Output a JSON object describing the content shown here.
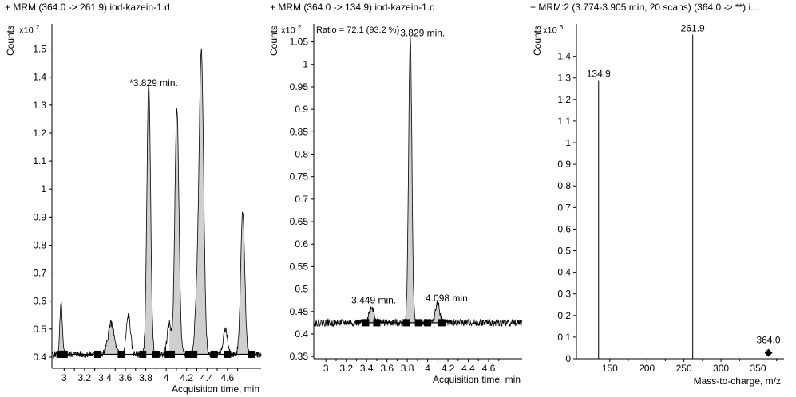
{
  "chart_data": [
    {
      "type": "line",
      "title": "+ MRM (364.0 -> 261.9) iod-kazein-1.d",
      "ylabel": "Counts",
      "scale_label": "x10",
      "scale_exp": "2",
      "xlabel": "Acquisition time, min",
      "xlim": [
        2.88,
        4.93
      ],
      "ylim": [
        0.36,
        1.59
      ],
      "x_ticks": [
        3,
        3.2,
        3.4,
        3.6,
        3.8,
        4,
        4.2,
        4.4,
        4.6
      ],
      "x_tick_labels": [
        "3",
        "3.2",
        "3.4",
        "3.6",
        "3.8",
        "4",
        "4.2",
        "4.4",
        "4.6"
      ],
      "y_ticks": [
        0.4,
        0.5,
        0.6,
        0.7,
        0.8,
        0.9,
        1,
        1.1,
        1.2,
        1.3,
        1.4,
        1.5
      ],
      "y_tick_labels": [
        "0.4",
        "0.5",
        "0.6",
        "0.7",
        "0.8",
        "0.9",
        "1",
        "1.1",
        "1.2",
        "1.3",
        "1.4",
        "1.5"
      ],
      "baseline": 0.41,
      "noise_amplitude": 0.012,
      "peaks": [
        {
          "x": 2.97,
          "h": 0.59,
          "w": 0.012,
          "fill": true,
          "start": 2.93,
          "end": 3.01
        },
        {
          "x": 3.46,
          "h": 0.52,
          "w": 0.03,
          "fill": true,
          "start": 3.32,
          "end": 3.55
        },
        {
          "x": 3.63,
          "h": 0.55,
          "w": 0.02,
          "fill": false
        },
        {
          "x": 3.829,
          "h": 1.38,
          "w": 0.018,
          "fill": true,
          "start": 3.77,
          "end": 3.9
        },
        {
          "x": 4.03,
          "h": 0.52,
          "w": 0.02,
          "fill": false
        },
        {
          "x": 4.105,
          "h": 1.29,
          "w": 0.02,
          "fill": true,
          "start": 4.03,
          "end": 4.22
        },
        {
          "x": 4.3,
          "h": 0.58,
          "w": 0.02,
          "fill": false
        },
        {
          "x": 4.345,
          "h": 1.48,
          "w": 0.022,
          "fill": true,
          "start": 4.24,
          "end": 4.47
        },
        {
          "x": 4.58,
          "h": 0.5,
          "w": 0.02,
          "fill": false
        },
        {
          "x": 4.75,
          "h": 0.92,
          "w": 0.02,
          "fill": true,
          "start": 4.68,
          "end": 4.84
        }
      ],
      "markers": [
        2.96,
        3.0,
        3.33,
        3.56,
        3.77,
        3.9,
        4.02,
        4.05,
        4.22,
        4.27,
        4.47,
        4.6,
        4.84
      ],
      "annotations": [
        {
          "text": "*3.829 min.",
          "x": 3.64,
          "y": 1.38
        }
      ]
    },
    {
      "type": "line",
      "title": "+ MRM (364.0 -> 134.9) iod-kazein-1.d",
      "ylabel": "Counts",
      "scale_label": "x10",
      "scale_exp": "2",
      "ratio_text": "Ratio = 72.1 (93.2 %)",
      "xlabel": "Acquisition time, min",
      "xlim": [
        2.88,
        4.93
      ],
      "ylim": [
        0.345,
        1.09
      ],
      "x_ticks": [
        3,
        3.2,
        3.4,
        3.6,
        3.8,
        4,
        4.2,
        4.4,
        4.6
      ],
      "x_tick_labels": [
        "3",
        "3.2",
        "3.4",
        "3.6",
        "3.8",
        "4",
        "4.2",
        "4.4",
        "4.6"
      ],
      "y_ticks": [
        0.35,
        0.4,
        0.45,
        0.5,
        0.55,
        0.6,
        0.65,
        0.7,
        0.75,
        0.8,
        0.85,
        0.9,
        0.95,
        1,
        1.05
      ],
      "y_tick_labels": [
        "0.35",
        "0.4",
        "0.45",
        "0.5",
        "0.55",
        "0.6",
        "0.65",
        "0.7",
        "0.75",
        "0.8",
        "0.85",
        "0.9",
        "0.95",
        "1",
        "1.05"
      ],
      "baseline": 0.425,
      "noise_amplitude": 0.008,
      "peaks": [
        {
          "x": 3.449,
          "h": 0.46,
          "w": 0.025,
          "fill": true,
          "start": 3.37,
          "end": 3.52
        },
        {
          "x": 3.829,
          "h": 1.06,
          "w": 0.016,
          "fill": true,
          "start": 3.78,
          "end": 3.91
        },
        {
          "x": 4.098,
          "h": 0.47,
          "w": 0.02,
          "fill": true,
          "start": 4.0,
          "end": 4.14
        }
      ],
      "markers": [
        3.39,
        3.5,
        3.79,
        3.91,
        4.0,
        4.14
      ],
      "annotations": [
        {
          "text": "3.449 min.",
          "x": 3.25,
          "y": 0.475
        },
        {
          "text": "3.829 min.",
          "x": 3.73,
          "y": 1.07
        },
        {
          "text": "4.098 min.",
          "x": 3.98,
          "y": 0.48
        }
      ]
    },
    {
      "type": "bar",
      "title": "+ MRM:2 (3.774-3.905 min, 20 scans) (364.0 -> **) i...",
      "ylabel": "Counts",
      "scale_label": "x10",
      "scale_exp": "3",
      "xlabel": "Mass-to-charge, m/z",
      "xlim": [
        105,
        385
      ],
      "ylim": [
        0,
        1.55
      ],
      "x_ticks": [
        150,
        200,
        250,
        300,
        350
      ],
      "x_tick_labels": [
        "150",
        "200",
        "250",
        "300",
        "350"
      ],
      "y_ticks": [
        0,
        0.1,
        0.2,
        0.3,
        0.4,
        0.5,
        0.6,
        0.7,
        0.8,
        0.9,
        1,
        1.1,
        1.2,
        1.3,
        1.4
      ],
      "y_tick_labels": [
        "0",
        "0.1",
        "0.2",
        "0.3",
        "0.4",
        "0.5",
        "0.6",
        "0.7",
        "0.8",
        "0.9",
        "1",
        "1.1",
        "1.2",
        "1.3",
        "1.4"
      ],
      "bars": [
        {
          "x": 134.9,
          "y": 1.29,
          "label": "134.9"
        },
        {
          "x": 261.9,
          "y": 1.5,
          "label": "261.9"
        }
      ],
      "precursor": {
        "x": 364.0,
        "y": 0.02,
        "label": "364.0"
      }
    }
  ]
}
